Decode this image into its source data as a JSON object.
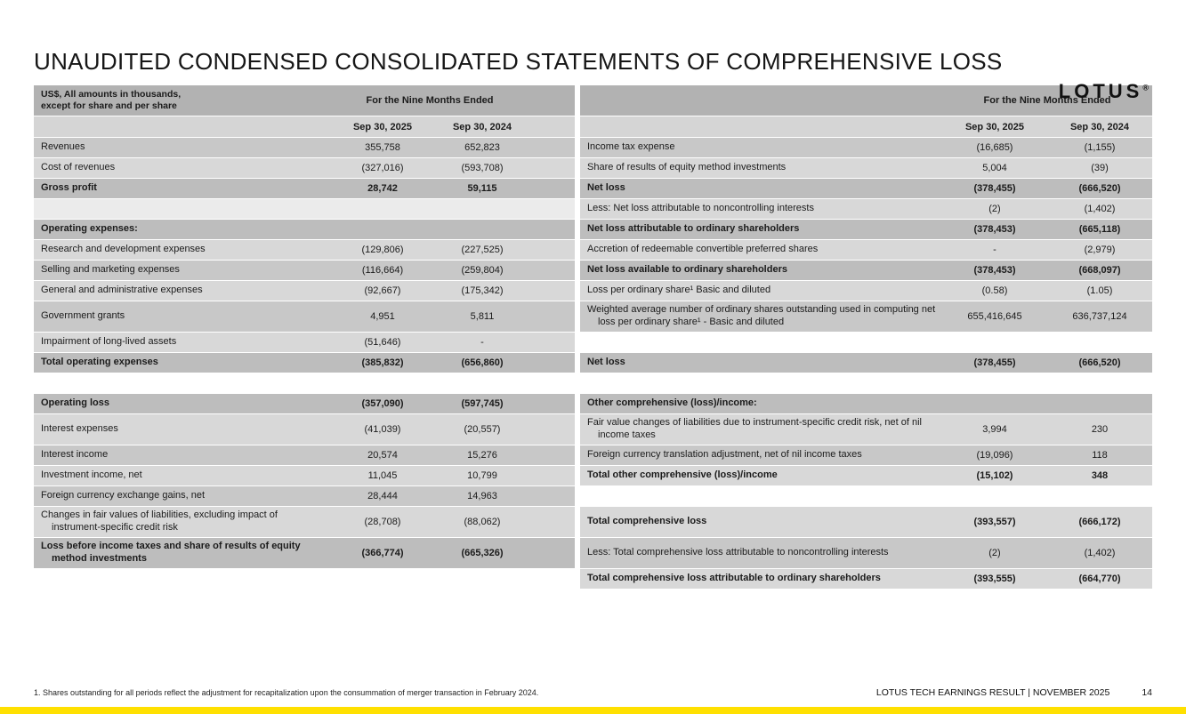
{
  "page": {
    "title": "UNAUDITED CONDENSED CONSOLIDATED STATEMENTS OF COMPREHENSIVE LOSS",
    "logo": "LOTUS",
    "logo_reg": "®",
    "footnote": "1. Shares outstanding for all periods reflect the adjustment for recapitalization upon the consummation of merger transaction in February 2024.",
    "footer_right": "LOTUS TECH EARNINGS RESULT | NOVEMBER 2025",
    "page_number": "14"
  },
  "colors": {
    "accent_bar": "#FFE000",
    "band": "#b2b2b2",
    "row_mid": "#c8c8c8",
    "row_light": "#d8d8d8",
    "row_dark": "#bdbdbd",
    "row_pale": "#ebebeb",
    "date_row": "#d5d5d5",
    "text": "#1b1b1b"
  },
  "table": {
    "corner_label_line1": "US$, All amounts in thousands,",
    "corner_label_line2": "except for share and per share",
    "period_header": "For the Nine Months Ended",
    "date_2025": "Sep 30, 2025",
    "date_2024": "Sep 30, 2024",
    "rows": [
      {
        "left": {
          "label": "Revenues",
          "v1": "355,758",
          "v2": "652,823",
          "shade": "mid",
          "bold": false
        },
        "right": {
          "label": "Income tax expense",
          "v1": "(16,685)",
          "v2": "(1,155)",
          "shade": "mid",
          "bold": false
        }
      },
      {
        "left": {
          "label": "Cost of revenues",
          "v1": "(327,016)",
          "v2": "(593,708)",
          "shade": "light",
          "bold": false
        },
        "right": {
          "label": "Share of results of equity method investments",
          "v1": "5,004",
          "v2": "(39)",
          "shade": "light",
          "bold": false
        }
      },
      {
        "left": {
          "label": "Gross profit",
          "v1": "28,742",
          "v2": "59,115",
          "shade": "dark",
          "bold": true
        },
        "right": {
          "label": "Net loss",
          "v1": "(378,455)",
          "v2": "(666,520)",
          "shade": "dark",
          "bold": true
        }
      },
      {
        "left": {
          "label": "",
          "v1": "",
          "v2": "",
          "shade": "pale",
          "bold": false
        },
        "right": {
          "label": "Less: Net loss attributable to noncontrolling interests",
          "v1": "(2)",
          "v2": "(1,402)",
          "shade": "light",
          "bold": false
        }
      },
      {
        "left": {
          "label": "Operating expenses:",
          "v1": "",
          "v2": "",
          "shade": "dark",
          "bold": true
        },
        "right": {
          "label": "Net loss attributable to ordinary shareholders",
          "v1": "(378,453)",
          "v2": "(665,118)",
          "shade": "dark",
          "bold": true
        }
      },
      {
        "left": {
          "label": "Research and development expenses",
          "v1": "(129,806)",
          "v2": "(227,525)",
          "shade": "light",
          "bold": false
        },
        "right": {
          "label": "Accretion of redeemable convertible preferred shares",
          "v1": "-",
          "v2": "(2,979)",
          "shade": "light",
          "bold": false
        }
      },
      {
        "left": {
          "label": "Selling and marketing expenses",
          "v1": "(116,664)",
          "v2": "(259,804)",
          "shade": "mid",
          "bold": false
        },
        "right": {
          "label": "Net loss available to ordinary shareholders",
          "v1": "(378,453)",
          "v2": "(668,097)",
          "shade": "dark",
          "bold": true
        }
      },
      {
        "left": {
          "label": "General and administrative expenses",
          "v1": "(92,667)",
          "v2": "(175,342)",
          "shade": "light",
          "bold": false
        },
        "right": {
          "label": "Loss per ordinary share¹ Basic and diluted",
          "v1": "(0.58)",
          "v2": "(1.05)",
          "shade": "light",
          "bold": false
        }
      },
      {
        "left": {
          "label": "Government grants",
          "v1": "4,951",
          "v2": "5,811",
          "shade": "mid",
          "bold": false
        },
        "right": {
          "label": "Weighted average number of ordinary shares outstanding used in computing net loss per ordinary share¹ - Basic and diluted",
          "v1": "655,416,645",
          "v2": "636,737,124",
          "shade": "mid",
          "bold": false
        }
      },
      {
        "left": {
          "label": "Impairment of long-lived assets",
          "v1": "(51,646)",
          "v2": "-",
          "shade": "light",
          "bold": false
        },
        "right": {
          "label": "",
          "v1": "",
          "v2": "",
          "shade": "white",
          "bold": false
        }
      },
      {
        "left": {
          "label": "Total operating expenses",
          "v1": "(385,832)",
          "v2": "(656,860)",
          "shade": "dark",
          "bold": true
        },
        "right": {
          "label": "Net loss",
          "v1": "(378,455)",
          "v2": "(666,520)",
          "shade": "dark",
          "bold": true
        }
      },
      {
        "left": {
          "label": "",
          "v1": "",
          "v2": "",
          "shade": "white",
          "bold": false
        },
        "right": {
          "label": "",
          "v1": "",
          "v2": "",
          "shade": "white",
          "bold": false
        }
      },
      {
        "left": {
          "label": "Operating loss",
          "v1": "(357,090)",
          "v2": "(597,745)",
          "shade": "dark",
          "bold": true
        },
        "right": {
          "label": "Other comprehensive (loss)/income:",
          "v1": "",
          "v2": "",
          "shade": "dark",
          "bold": true
        }
      },
      {
        "left": {
          "label": "Interest expenses",
          "v1": "(41,039)",
          "v2": "(20,557)",
          "shade": "light",
          "bold": false
        },
        "right": {
          "label": "Fair value changes of liabilities due to instrument-specific credit risk, net of nil income taxes",
          "v1": "3,994",
          "v2": "230",
          "shade": "light",
          "bold": false
        }
      },
      {
        "left": {
          "label": "Interest income",
          "v1": "20,574",
          "v2": "15,276",
          "shade": "mid",
          "bold": false
        },
        "right": {
          "label": "Foreign currency translation adjustment, net of nil income taxes",
          "v1": "(19,096)",
          "v2": "118",
          "shade": "mid",
          "bold": false
        }
      },
      {
        "left": {
          "label": "Investment income, net",
          "v1": "11,045",
          "v2": "10,799",
          "shade": "light",
          "bold": false
        },
        "right": {
          "label": "Total other comprehensive (loss)/income",
          "v1": "(15,102)",
          "v2": "348",
          "shade": "light",
          "bold": true
        }
      },
      {
        "left": {
          "label": "Foreign currency exchange gains, net",
          "v1": "28,444",
          "v2": "14,963",
          "shade": "mid",
          "bold": false
        },
        "right": {
          "label": "",
          "v1": "",
          "v2": "",
          "shade": "white",
          "bold": false
        }
      },
      {
        "left": {
          "label": "Changes in fair values of liabilities, excluding impact of instrument-specific credit risk",
          "v1": "(28,708)",
          "v2": "(88,062)",
          "shade": "light",
          "bold": false
        },
        "right": {
          "label": "Total comprehensive loss",
          "v1": "(393,557)",
          "v2": "(666,172)",
          "shade": "light",
          "bold": true
        }
      },
      {
        "left": {
          "label": "Loss before income taxes and share of results of equity method investments",
          "v1": "(366,774)",
          "v2": "(665,326)",
          "shade": "dark",
          "bold": true
        },
        "right": {
          "label": "Less: Total comprehensive loss attributable to noncontrolling interests",
          "v1": "(2)",
          "v2": "(1,402)",
          "shade": "mid",
          "bold": false
        }
      },
      {
        "left": {
          "label": "",
          "v1": "",
          "v2": "",
          "shade": "white",
          "bold": false
        },
        "right": {
          "label": "Total comprehensive loss attributable to ordinary shareholders",
          "v1": "(393,555)",
          "v2": "(664,770)",
          "shade": "light",
          "bold": true
        }
      }
    ]
  }
}
